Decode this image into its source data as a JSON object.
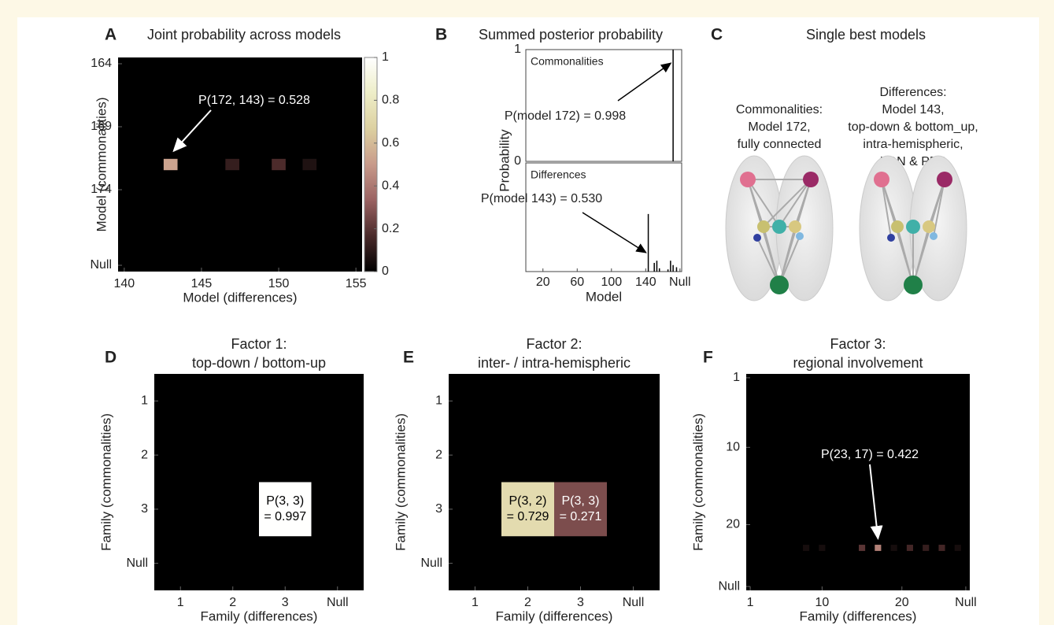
{
  "chart_data": [
    {
      "type": "heatmap",
      "panel": "A",
      "title": "Joint probability across models",
      "xlabel": "Model (differences)",
      "ylabel": "Model (commonalities)",
      "xlim": [
        139.6,
        155.4
      ],
      "ylim": [
        180.5,
        163.5
      ],
      "xticks": [
        140,
        145,
        150,
        155
      ],
      "yticks": [
        164,
        169,
        174,
        {
          "value": 180,
          "label": "Null"
        }
      ],
      "x": [
        143,
        147,
        150,
        152
      ],
      "y": [
        172,
        172,
        172,
        172
      ],
      "values": [
        0.528,
        0.12,
        0.17,
        0.07
      ],
      "annotation": "P(172, 143) = 0.528",
      "colormap": [
        "#000000",
        "#4a2a2a",
        "#9a6262",
        "#c89a8a",
        "#dcd0a0",
        "#eeeec8",
        "#ffffff"
      ],
      "colorbar": {
        "lim": [
          0,
          1
        ],
        "ticks": [
          0,
          0.2,
          0.4,
          0.6,
          0.8,
          1
        ]
      }
    },
    {
      "type": "stem",
      "panel": "B",
      "title": "Summed posterior probability",
      "xlabel": "Model",
      "ylabel": "Probability",
      "color": "#000000",
      "xlim": [
        0,
        182
      ],
      "xticks": [
        20,
        60,
        100,
        140,
        {
          "value": 180,
          "label": "Null"
        }
      ],
      "ylim": [
        0,
        1
      ],
      "yticks": [
        0,
        1
      ],
      "series": [
        {
          "name": "Commonalities",
          "x": [
            172
          ],
          "values": [
            0.998
          ],
          "annotation": "P(model 172) = 0.998"
        },
        {
          "name": "Differences",
          "x": [
            143,
            150,
            153,
            156,
            166,
            169,
            172,
            176
          ],
          "values": [
            0.53,
            0.08,
            0.1,
            0.03,
            0.02,
            0.1,
            0.06,
            0.04
          ],
          "annotation": "P(model 143) = 0.530"
        }
      ]
    },
    {
      "type": "heatmap",
      "panel": "D",
      "title": "Factor 1:",
      "subtitle": "top-down / bottom-up",
      "xlabel": "Family (differences)",
      "ylabel": "Family (commonalities)",
      "xlim": [
        0.5,
        4.5
      ],
      "ylim": [
        4.5,
        0.5
      ],
      "xticks": [
        1,
        2,
        3,
        {
          "value": 4,
          "label": "Null"
        }
      ],
      "yticks": [
        1,
        2,
        3,
        {
          "value": 4,
          "label": "Null"
        }
      ],
      "x": [
        3
      ],
      "y": [
        3
      ],
      "values": [
        0.997
      ],
      "value_labels": [
        [
          "P(3, 3)",
          "= 0.997"
        ]
      ],
      "colormap": [
        "#000000",
        "#4a2a2a",
        "#9a6262",
        "#c89a8a",
        "#dcd0a0",
        "#eeeec8",
        "#ffffff"
      ]
    },
    {
      "type": "heatmap",
      "panel": "E",
      "title": "Factor 2:",
      "subtitle": "inter- / intra-hemispheric",
      "xlabel": "Family (differences)",
      "ylabel": "Family (commonalities)",
      "xlim": [
        0.5,
        4.5
      ],
      "ylim": [
        4.5,
        0.5
      ],
      "xticks": [
        1,
        2,
        3,
        {
          "value": 4,
          "label": "Null"
        }
      ],
      "yticks": [
        1,
        2,
        3,
        {
          "value": 4,
          "label": "Null"
        }
      ],
      "x": [
        2,
        3
      ],
      "y": [
        3,
        3
      ],
      "values": [
        0.729,
        0.271
      ],
      "value_labels": [
        [
          "P(3, 2)",
          "= 0.729"
        ],
        [
          "P(3, 3)",
          "= 0.271"
        ]
      ],
      "colormap": [
        "#000000",
        "#4a2a2a",
        "#9a6262",
        "#c89a8a",
        "#dcd0a0",
        "#eeeec8",
        "#ffffff"
      ]
    },
    {
      "type": "heatmap",
      "panel": "F",
      "title": "Factor 3:",
      "subtitle": "regional involvement",
      "xlabel": "Family (differences)",
      "ylabel": "Family (commonalities)",
      "xlim": [
        0.5,
        28.5
      ],
      "ylim": [
        28.5,
        0.5
      ],
      "xticks": [
        1,
        10,
        20,
        {
          "value": 28,
          "label": "Null"
        }
      ],
      "yticks": [
        1,
        10,
        20,
        {
          "value": 28,
          "label": "Null"
        }
      ],
      "x": [
        8,
        10,
        15,
        17,
        19,
        21,
        23,
        25,
        27
      ],
      "y": [
        23,
        23,
        23,
        23,
        23,
        23,
        23,
        23,
        23
      ],
      "values": [
        0.05,
        0.05,
        0.2,
        0.422,
        0.05,
        0.15,
        0.12,
        0.15,
        0.05
      ],
      "annotation": "P(23, 17) = 0.422",
      "colormap": [
        "#000000",
        "#4a2a2a",
        "#9a6262",
        "#c89a8a",
        "#dcd0a0",
        "#eeeec8",
        "#ffffff"
      ]
    }
  ],
  "diagram": {
    "panel": "C",
    "title": "Single best models",
    "models": [
      {
        "lines": [
          "Commonalities:",
          "Model 172,",
          "fully connected"
        ]
      },
      {
        "lines": [
          "Differences:",
          "Model 143,",
          "top-down & bottom_up,",
          "intra-hemispheric,",
          "LGN & PFC"
        ]
      }
    ]
  }
}
